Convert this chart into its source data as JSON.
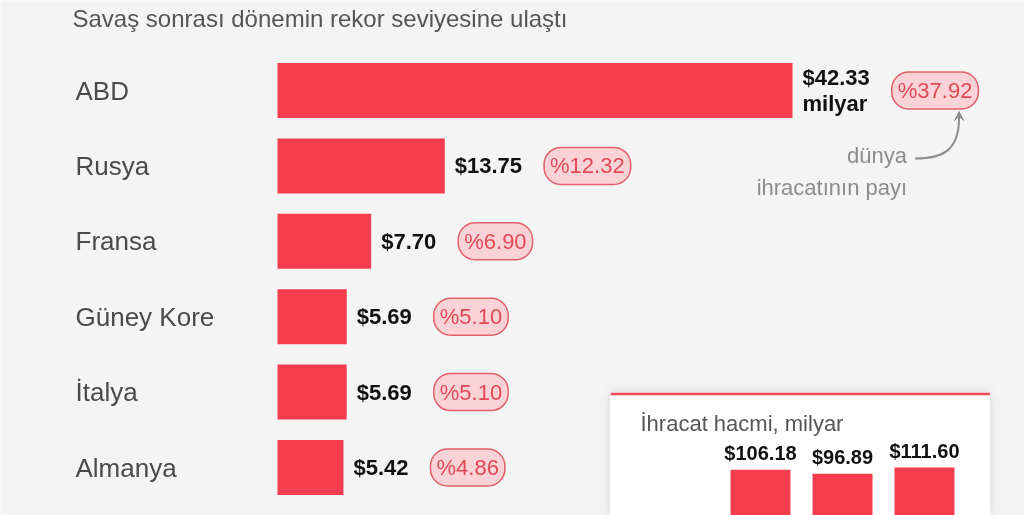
{
  "chart_data": [
    {
      "type": "bar",
      "subtitle": "Savaş sonrası dönemin rekor seviyesine ulaştı",
      "orientation": "horizontal",
      "tick_labels": "y",
      "categories": [
        "ABD",
        "Rusya",
        "Fransa",
        "Güney Kore",
        "İtalya",
        "Almanya"
      ],
      "values": [
        42.33,
        13.75,
        7.7,
        5.69,
        5.69,
        5.42
      ],
      "color": "#f43e50",
      "value_labels": [
        "$42.33 milyar",
        "$13.75",
        "$7.70",
        "$5.69",
        "$5.69",
        "$5.42"
      ],
      "annotations": [
        "%37.92",
        "%12.32",
        "%6.90",
        "%5.10",
        "%5.10",
        "%4.86",
        "dünya ihracatının payı"
      ]
    },
    {
      "type": "bar",
      "title": "İhracat hacmi, milyar",
      "categories": [
        null,
        null,
        null
      ],
      "values": [
        106.18,
        96.89,
        111.6
      ],
      "color": "#f43e50",
      "value_labels": [
        "$106.18",
        "$96.89",
        "$111.60"
      ]
    }
  ]
}
